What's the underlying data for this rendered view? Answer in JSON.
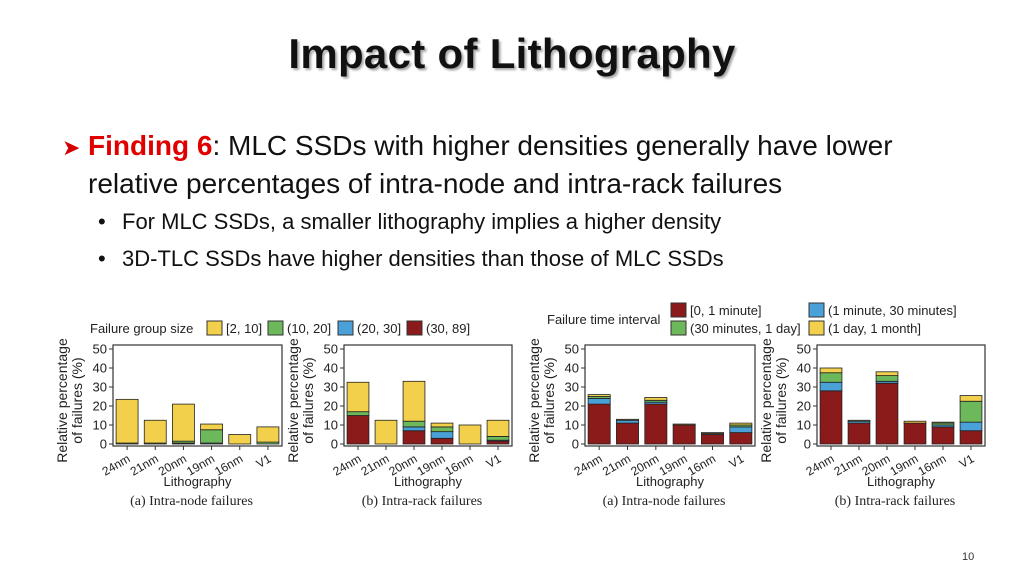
{
  "slide": {
    "title": "Impact of Lithography",
    "finding_label": "Finding 6",
    "finding_text": ": MLC SSDs with higher densities generally have lower",
    "finding_text_2": "relative percentages of intra-node and intra-rack failures",
    "bullets": [
      "For MLC SSDs, a smaller lithography implies a higher density",
      "3D-TLC SSDs have higher densities than those of MLC SSDs"
    ],
    "page_number": "10"
  },
  "colors": {
    "c1": "#f2d04b",
    "c2": "#6db85a",
    "c3": "#4aa1d8",
    "c4": "#8b1a1a",
    "frame": "#333333"
  },
  "legends": {
    "group": {
      "title": "Failure group size",
      "items": [
        "[2, 10]",
        "(10, 20]",
        "(20, 30]",
        "(30, 89]"
      ]
    },
    "time": {
      "title": "Failure time interval",
      "items": [
        "[0, 1 minute]",
        "(1 minute, 30 minutes]",
        "(30 minutes, 1 day]",
        "(1 day, 1 month]"
      ]
    }
  },
  "chart_data": [
    {
      "type": "bar",
      "stacked": true,
      "caption": "(a) Intra-node failures",
      "xlabel": "Lithography",
      "ylabel": "Relative percentage of failures (%)",
      "ylim": [
        0,
        50
      ],
      "yticks": [
        0,
        10,
        20,
        30,
        40,
        50
      ],
      "categories": [
        "24nm",
        "21nm",
        "20nm",
        "19nm",
        "16nm",
        "V1"
      ],
      "series": [
        {
          "name": "(30, 89]",
          "values": [
            0,
            0,
            0.5,
            0,
            0,
            0
          ]
        },
        {
          "name": "(20, 30]",
          "values": [
            0,
            0,
            0,
            0.5,
            0,
            0
          ]
        },
        {
          "name": "(10, 20]",
          "values": [
            0.5,
            0.5,
            1,
            7,
            0,
            1
          ]
        },
        {
          "name": "[2, 10]",
          "values": [
            23,
            12,
            19.5,
            3,
            5,
            8
          ]
        }
      ]
    },
    {
      "type": "bar",
      "stacked": true,
      "caption": "(b) Intra-rack failures",
      "xlabel": "Lithography",
      "ylabel": "Relative percentage of failures (%)",
      "ylim": [
        0,
        50
      ],
      "yticks": [
        0,
        10,
        20,
        30,
        40,
        50
      ],
      "categories": [
        "24nm",
        "21nm",
        "20nm",
        "19nm",
        "16nm",
        "V1"
      ],
      "series": [
        {
          "name": "(30, 89]",
          "values": [
            15,
            0,
            7,
            3,
            0,
            1.5
          ]
        },
        {
          "name": "(20, 30]",
          "values": [
            0,
            0,
            2,
            3.5,
            0,
            0.5
          ]
        },
        {
          "name": "(10, 20]",
          "values": [
            2,
            0,
            3,
            2.5,
            0,
            2
          ]
        },
        {
          "name": "[2, 10]",
          "values": [
            15.5,
            12.5,
            21,
            2,
            10,
            8.5
          ]
        }
      ]
    },
    {
      "type": "bar",
      "stacked": true,
      "caption": "(a) Intra-node failures",
      "xlabel": "Lithography",
      "ylabel": "Relative percentage of failures (%)",
      "ylim": [
        0,
        50
      ],
      "yticks": [
        0,
        10,
        20,
        30,
        40,
        50
      ],
      "categories": [
        "24nm",
        "21nm",
        "20nm",
        "19nm",
        "16nm",
        "V1"
      ],
      "series": [
        {
          "name": "[0, 1 minute]",
          "values": [
            21,
            11,
            21,
            10,
            5,
            6
          ]
        },
        {
          "name": "(1 minute, 30 minutes]",
          "values": [
            3,
            1.5,
            1,
            0,
            0.5,
            3
          ]
        },
        {
          "name": "(30 minutes, 1 day]",
          "values": [
            1,
            0,
            1,
            0,
            0,
            1
          ]
        },
        {
          "name": "(1 day, 1 month]",
          "values": [
            1,
            0.5,
            1.5,
            0.5,
            0.5,
            1
          ]
        }
      ]
    },
    {
      "type": "bar",
      "stacked": true,
      "caption": "(b) Intra-rack failures",
      "xlabel": "Lithography",
      "ylabel": "Relative percentage of failures (%)",
      "ylim": [
        0,
        50
      ],
      "yticks": [
        0,
        10,
        20,
        30,
        40,
        50
      ],
      "categories": [
        "24nm",
        "21nm",
        "20nm",
        "19nm",
        "16nm",
        "V1"
      ],
      "series": [
        {
          "name": "[0, 1 minute]",
          "values": [
            28,
            11,
            32,
            11,
            9,
            7
          ]
        },
        {
          "name": "(1 minute, 30 minutes]",
          "values": [
            4.5,
            1,
            1,
            0,
            1,
            4.5
          ]
        },
        {
          "name": "(30 minutes, 1 day]",
          "values": [
            5,
            0,
            3,
            0,
            1,
            11
          ]
        },
        {
          "name": "(1 day, 1 month]",
          "values": [
            2.5,
            0.5,
            2,
            1,
            0.5,
            3
          ]
        }
      ]
    }
  ]
}
